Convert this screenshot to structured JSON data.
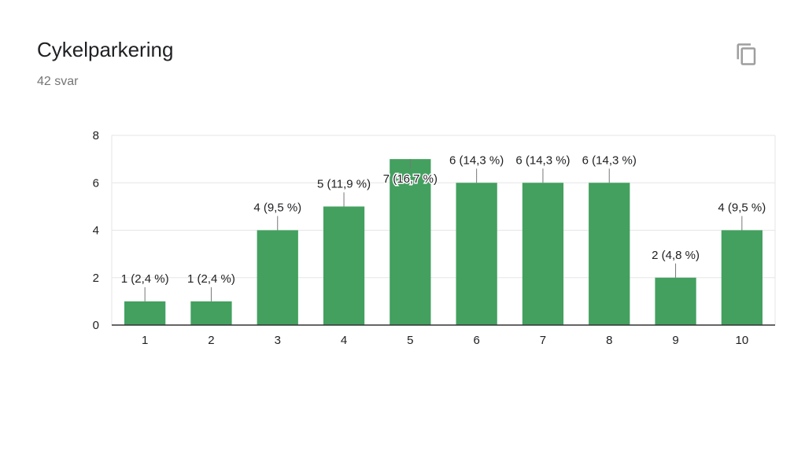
{
  "header": {
    "title": "Cykelparkering",
    "response_count": "42 svar",
    "copy_icon": "copy-icon"
  },
  "chart_data": {
    "type": "bar",
    "categories": [
      "1",
      "2",
      "3",
      "4",
      "5",
      "6",
      "7",
      "8",
      "9",
      "10"
    ],
    "values": [
      1,
      1,
      4,
      5,
      7,
      6,
      6,
      6,
      2,
      4
    ],
    "data_labels": [
      "1 (2,4 %)",
      "1 (2,4 %)",
      "4 (9,5 %)",
      "5 (11,9 %)",
      "7 (16,7 %)",
      "6 (14,3 %)",
      "6 (14,3 %)",
      "6 (14,3 %)",
      "2 (4,8 %)",
      "4 (9,5 %)"
    ],
    "yticks": [
      0,
      2,
      4,
      6,
      8
    ],
    "ylim": [
      0,
      8
    ],
    "grid": true,
    "bar_color": "#43a05f",
    "gridline_color": "#e5e5e5",
    "axis_color": "#333333",
    "label_color": "#202124"
  }
}
